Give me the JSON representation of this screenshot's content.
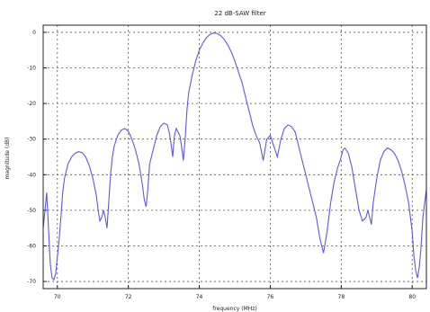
{
  "chart_data": {
    "type": "line",
    "title": "22 dB-SAW filter",
    "xlabel": "frequency (MHz)",
    "ylabel": "magnitude (dB)",
    "xlim": [
      69.6,
      80.4
    ],
    "ylim": [
      -72,
      2
    ],
    "x_ticks": [
      70,
      72,
      74,
      76,
      78,
      80
    ],
    "x_tick_labels": [
      "70",
      "72",
      "74",
      "76",
      "78",
      "80"
    ],
    "y_ticks": [
      0,
      -10,
      -20,
      -30,
      -40,
      -50,
      -60,
      -70
    ],
    "y_tick_labels": [
      "0",
      "-10",
      "-20",
      "-30",
      "-40",
      "-50",
      "-60",
      "-70"
    ],
    "grid": true,
    "colors": {
      "line": "#5a5ae0",
      "grid": "#555555",
      "axis": "#222222"
    },
    "series": [
      {
        "x": [
          69.6,
          69.65,
          69.7,
          69.75,
          69.8,
          69.85,
          69.9,
          69.95,
          70.0,
          70.05,
          70.1,
          70.15,
          70.2,
          70.3,
          70.4,
          70.5,
          70.6,
          70.7,
          70.8,
          70.9,
          71.0,
          71.1,
          71.15,
          71.2,
          71.25,
          71.3,
          71.35,
          71.4,
          71.5,
          71.55,
          71.6,
          71.7,
          71.8,
          71.9,
          72.0,
          72.1,
          72.2,
          72.3,
          72.4,
          72.45,
          72.5,
          72.55,
          72.6,
          72.7,
          72.8,
          72.9,
          73.0,
          73.1,
          73.15,
          73.2,
          73.25,
          73.3,
          73.35,
          73.45,
          73.5,
          73.55,
          73.6,
          73.65,
          73.7,
          73.8,
          73.9,
          74.0,
          74.1,
          74.2,
          74.3,
          74.4,
          74.5,
          74.6,
          74.7,
          74.8,
          74.9,
          75.0,
          75.1,
          75.2,
          75.3,
          75.4,
          75.5,
          75.6,
          75.7,
          75.8,
          75.9,
          76.0,
          76.1,
          76.2,
          76.3,
          76.4,
          76.5,
          76.6,
          76.7,
          76.8,
          76.9,
          77.0,
          77.1,
          77.2,
          77.3,
          77.4,
          77.5,
          77.6,
          77.7,
          77.8,
          77.9,
          78.0,
          78.05,
          78.1,
          78.2,
          78.3,
          78.4,
          78.5,
          78.6,
          78.7,
          78.75,
          78.8,
          78.85,
          78.9,
          79.0,
          79.1,
          79.2,
          79.3,
          79.4,
          79.5,
          79.6,
          79.7,
          79.8,
          79.9,
          80.0,
          80.05,
          80.1,
          80.15,
          80.2,
          80.25,
          80.3,
          80.4
        ],
        "values": [
          -55,
          -50,
          -45,
          -55,
          -65,
          -69,
          -69.5,
          -68,
          -63,
          -58,
          -52,
          -45,
          -41,
          -37,
          -35,
          -34,
          -33.5,
          -33.8,
          -35,
          -37.5,
          -41,
          -46,
          -50,
          -53,
          -52,
          -50,
          -52,
          -55,
          -40,
          -35,
          -32,
          -29,
          -27.5,
          -27,
          -27.8,
          -30,
          -33,
          -37,
          -43,
          -47,
          -49,
          -44,
          -37,
          -33,
          -29,
          -26.5,
          -25.5,
          -26,
          -28,
          -31,
          -35,
          -29,
          -27,
          -29,
          -32,
          -36,
          -30,
          -22,
          -17,
          -12,
          -8,
          -5,
          -3,
          -1.5,
          -0.6,
          -0.2,
          -0.3,
          -0.9,
          -2,
          -3.5,
          -5.5,
          -8,
          -11,
          -14,
          -18,
          -22,
          -26,
          -29,
          -31,
          -36,
          -30,
          -29,
          -32,
          -35,
          -30,
          -27,
          -26,
          -26.5,
          -28,
          -32,
          -36,
          -40,
          -44,
          -48,
          -52,
          -58,
          -62,
          -56,
          -48,
          -42,
          -38,
          -35,
          -33,
          -32.5,
          -34,
          -38,
          -44,
          -50,
          -53,
          -52,
          -50,
          -52,
          -54,
          -48,
          -41,
          -36,
          -33.5,
          -32.5,
          -33,
          -34,
          -36,
          -39,
          -43,
          -48,
          -56,
          -63,
          -67,
          -69,
          -66,
          -60,
          -52,
          -44
        ]
      }
    ]
  }
}
